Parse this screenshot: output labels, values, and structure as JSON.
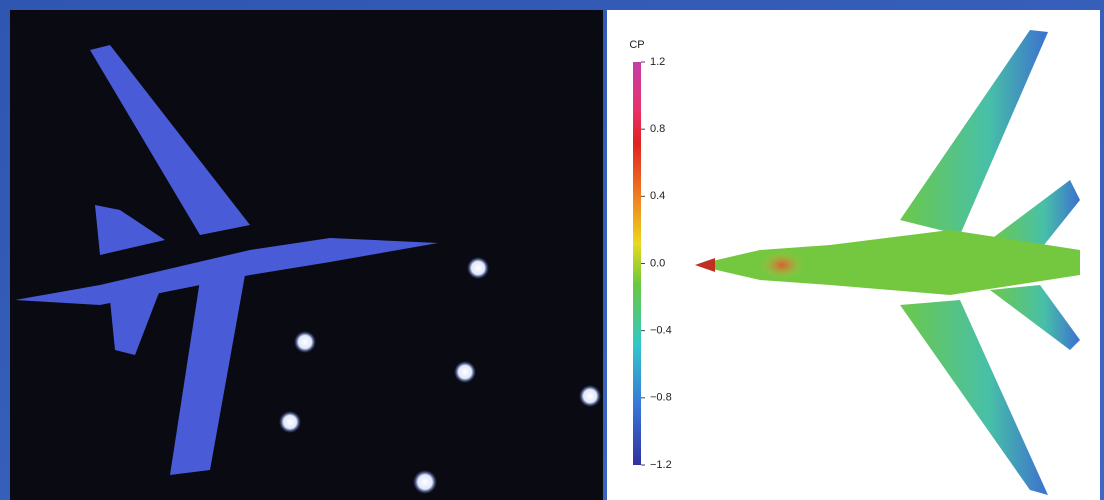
{
  "colorbar": {
    "label": "CP",
    "lim": [
      -1.2,
      1.2
    ],
    "ticks": [
      1.2,
      0.8,
      0.4,
      {
        "value": 0,
        "label": "0.0"
      },
      {
        "value": -0.4,
        "label": "−0.4"
      },
      {
        "value": -0.8,
        "label": "−0.8"
      },
      {
        "value": -1.2,
        "label": "−1.2"
      }
    ]
  }
}
